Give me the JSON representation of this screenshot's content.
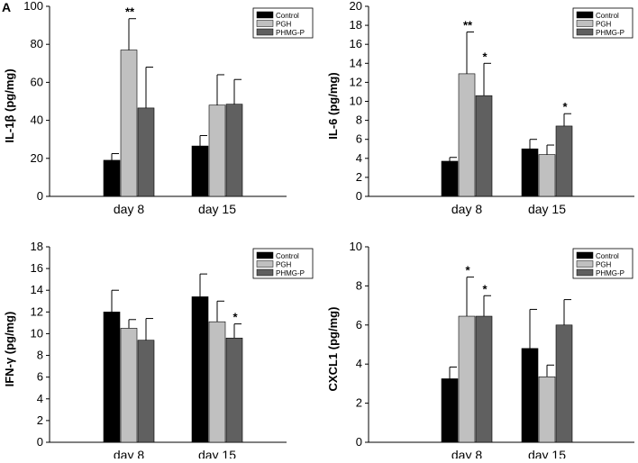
{
  "figure": {
    "panel_label": "A"
  },
  "colors": {
    "control": "#000000",
    "pgh": "#c0c0c0",
    "phmg": "#606060",
    "axis": "#000000"
  },
  "chart_data": [
    {
      "type": "bar",
      "ylabel": "IL-1β (pg/mg)",
      "ylim": [
        0,
        100
      ],
      "yticks": [
        "0",
        "20",
        "40",
        "60",
        "80",
        "100"
      ],
      "categories": [
        "day 8",
        "day 15"
      ],
      "legend": [
        "Control",
        "PGH",
        "PHMG-P"
      ],
      "legend_position": "top-right",
      "series": [
        {
          "name": "Control",
          "values": [
            19,
            26.5
          ],
          "errors": [
            3.5,
            5.5
          ],
          "marks": [
            "",
            ""
          ]
        },
        {
          "name": "PGH",
          "values": [
            77,
            48
          ],
          "errors": [
            16.5,
            16
          ],
          "marks": [
            "**",
            ""
          ]
        },
        {
          "name": "PHMG-P",
          "values": [
            46.5,
            48.5
          ],
          "errors": [
            21.5,
            13
          ],
          "marks": [
            "",
            ""
          ]
        }
      ]
    },
    {
      "type": "bar",
      "ylabel": "IL-6 (pg/mg)",
      "ylim": [
        0,
        20
      ],
      "yticks": [
        "0",
        "2",
        "4",
        "6",
        "8",
        "10",
        "12",
        "14",
        "16",
        "18",
        "20"
      ],
      "categories": [
        "day 8",
        "day 15"
      ],
      "legend": [
        "Control",
        "PGH",
        "PHMG-P"
      ],
      "legend_position": "top-right",
      "series": [
        {
          "name": "Control",
          "values": [
            3.7,
            5.0
          ],
          "errors": [
            0.4,
            1.0
          ],
          "marks": [
            "",
            ""
          ]
        },
        {
          "name": "PGH",
          "values": [
            12.9,
            4.4
          ],
          "errors": [
            4.4,
            1.0
          ],
          "marks": [
            "**",
            ""
          ]
        },
        {
          "name": "PHMG-P",
          "values": [
            10.6,
            7.4
          ],
          "errors": [
            3.4,
            1.3
          ],
          "marks": [
            "*",
            "*"
          ]
        }
      ]
    },
    {
      "type": "bar",
      "ylabel": "IFN-γ (pg/mg)",
      "ylim": [
        0,
        18
      ],
      "yticks": [
        "0",
        "2",
        "4",
        "6",
        "8",
        "10",
        "12",
        "14",
        "16",
        "18"
      ],
      "categories": [
        "day 8",
        "day 15"
      ],
      "legend": [
        "Control",
        "PGH",
        "PHMG-P"
      ],
      "legend_position": "top-right",
      "series": [
        {
          "name": "Control",
          "values": [
            12.0,
            13.4
          ],
          "errors": [
            2.0,
            2.1
          ],
          "marks": [
            "",
            ""
          ]
        },
        {
          "name": "PGH",
          "values": [
            10.5,
            11.1
          ],
          "errors": [
            0.8,
            1.9
          ],
          "marks": [
            "",
            ""
          ]
        },
        {
          "name": "PHMG-P",
          "values": [
            9.4,
            9.6
          ],
          "errors": [
            2.0,
            1.3
          ],
          "marks": [
            "",
            "*"
          ]
        }
      ]
    },
    {
      "type": "bar",
      "ylabel": "CXCL1 (pg/mg)",
      "ylim": [
        0,
        10
      ],
      "yticks": [
        "0",
        "2",
        "4",
        "6",
        "8",
        "10"
      ],
      "categories": [
        "day 8",
        "day 15"
      ],
      "legend": [
        "Control",
        "PGH",
        "PHMG-P"
      ],
      "legend_position": "top-right",
      "series": [
        {
          "name": "Control",
          "values": [
            3.25,
            4.8
          ],
          "errors": [
            0.6,
            2.0
          ],
          "marks": [
            "",
            ""
          ]
        },
        {
          "name": "PGH",
          "values": [
            6.45,
            3.35
          ],
          "errors": [
            2.0,
            0.6
          ],
          "marks": [
            "*",
            ""
          ]
        },
        {
          "name": "PHMG-P",
          "values": [
            6.45,
            6.0
          ],
          "errors": [
            1.05,
            1.3
          ],
          "marks": [
            "*",
            ""
          ]
        }
      ]
    }
  ]
}
